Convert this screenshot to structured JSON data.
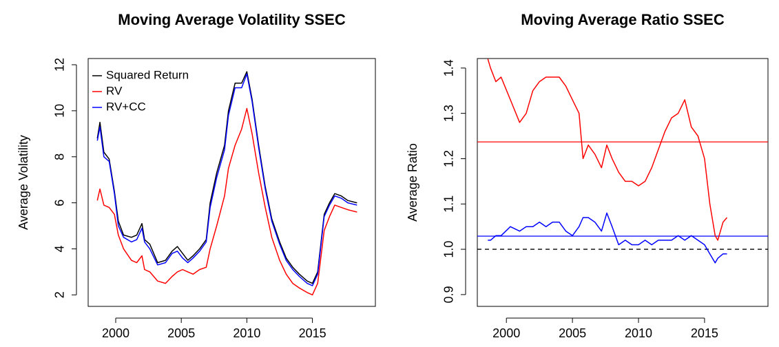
{
  "chart_data": [
    {
      "type": "line",
      "title": "Moving Average Volatility SSEC",
      "ylabel": "Average Volatility",
      "x": [
        1998.6,
        1998.8,
        1999.1,
        1999.5,
        1999.9,
        2000.2,
        2000.6,
        2001.2,
        2001.6,
        2002.0,
        2002.2,
        2002.6,
        2003.2,
        2003.8,
        2004.3,
        2004.7,
        2005.1,
        2005.5,
        2005.9,
        2006.4,
        2006.9,
        2007.2,
        2007.7,
        2008.3,
        2008.6,
        2009.1,
        2009.6,
        2010.0,
        2010.4,
        2010.9,
        2011.4,
        2011.9,
        2012.5,
        2013.0,
        2013.5,
        2014.0,
        2014.6,
        2015.0,
        2015.4,
        2015.9,
        2016.3,
        2016.7,
        2017.2,
        2017.7,
        2018.4
      ],
      "series": [
        {
          "name": "Squared Return",
          "color": "#000000",
          "values": [
            8.8,
            9.5,
            8.2,
            7.9,
            6.5,
            5.2,
            4.6,
            4.5,
            4.6,
            5.1,
            4.4,
            4.2,
            3.4,
            3.5,
            3.9,
            4.1,
            3.8,
            3.5,
            3.7,
            4.0,
            4.4,
            6.0,
            7.3,
            8.5,
            10.0,
            11.2,
            11.2,
            11.7,
            10.5,
            8.5,
            6.7,
            5.3,
            4.3,
            3.6,
            3.2,
            2.9,
            2.6,
            2.5,
            3.0,
            5.5,
            6.0,
            6.4,
            6.3,
            6.1,
            6.0
          ]
        },
        {
          "name": "RV",
          "color": "#ff0000",
          "values": [
            6.1,
            6.6,
            5.9,
            5.8,
            5.5,
            4.6,
            4.0,
            3.5,
            3.4,
            3.7,
            3.1,
            3.0,
            2.6,
            2.5,
            2.8,
            3.0,
            3.1,
            3.0,
            2.9,
            3.1,
            3.2,
            4.0,
            5.0,
            6.3,
            7.5,
            8.5,
            9.2,
            10.1,
            9.0,
            7.3,
            5.8,
            4.5,
            3.5,
            2.9,
            2.5,
            2.3,
            2.1,
            2.0,
            2.5,
            4.8,
            5.4,
            5.9,
            5.8,
            5.7,
            5.6
          ]
        },
        {
          "name": "RV+CC",
          "color": "#0000ff",
          "values": [
            8.7,
            9.3,
            8.0,
            7.8,
            6.4,
            5.0,
            4.5,
            4.3,
            4.4,
            4.9,
            4.3,
            4.0,
            3.3,
            3.4,
            3.8,
            3.9,
            3.6,
            3.4,
            3.6,
            3.9,
            4.3,
            5.8,
            7.1,
            8.3,
            9.8,
            11.0,
            11.0,
            11.6,
            10.4,
            8.4,
            6.6,
            5.2,
            4.2,
            3.5,
            3.1,
            2.8,
            2.5,
            2.4,
            2.9,
            5.4,
            5.9,
            6.3,
            6.2,
            6.0,
            5.9
          ]
        }
      ],
      "xlim": [
        1997.9,
        2019.8
      ],
      "ylim": [
        1.5,
        12.27
      ],
      "xticks": [
        2000,
        2005,
        2010,
        2015
      ],
      "yticks": [
        2,
        4,
        6,
        8,
        10,
        12
      ],
      "legend": "topleft"
    },
    {
      "type": "line",
      "title": "Moving Average Ratio SSEC",
      "ylabel": "Average Ratio",
      "x": [
        1998.6,
        1998.8,
        1999.2,
        1999.6,
        2000.3,
        2001.0,
        2001.5,
        2002.0,
        2002.5,
        2003.0,
        2003.5,
        2004.0,
        2004.5,
        2005.0,
        2005.5,
        2005.8,
        2006.2,
        2006.7,
        2007.2,
        2007.6,
        2008.0,
        2008.5,
        2009.0,
        2009.5,
        2010.0,
        2010.5,
        2011.0,
        2011.5,
        2012.0,
        2012.5,
        2013.0,
        2013.5,
        2014.0,
        2014.5,
        2015.0,
        2015.4,
        2015.8,
        2016.0,
        2016.4,
        2016.7
      ],
      "series": [
        {
          "color": "#ff0000",
          "values": [
            1.42,
            1.4,
            1.37,
            1.38,
            1.33,
            1.28,
            1.3,
            1.35,
            1.37,
            1.38,
            1.38,
            1.38,
            1.36,
            1.33,
            1.3,
            1.2,
            1.23,
            1.21,
            1.18,
            1.23,
            1.2,
            1.17,
            1.15,
            1.15,
            1.14,
            1.15,
            1.18,
            1.22,
            1.26,
            1.29,
            1.3,
            1.33,
            1.27,
            1.25,
            1.2,
            1.1,
            1.03,
            1.02,
            1.06,
            1.07
          ]
        },
        {
          "color": "#0000ff",
          "values": [
            1.02,
            1.02,
            1.03,
            1.03,
            1.05,
            1.04,
            1.05,
            1.05,
            1.06,
            1.05,
            1.06,
            1.06,
            1.04,
            1.03,
            1.05,
            1.07,
            1.07,
            1.06,
            1.04,
            1.08,
            1.05,
            1.01,
            1.02,
            1.01,
            1.01,
            1.02,
            1.01,
            1.02,
            1.02,
            1.02,
            1.03,
            1.02,
            1.03,
            1.02,
            1.01,
            0.99,
            0.97,
            0.98,
            0.99,
            0.99
          ]
        }
      ],
      "hlines": [
        {
          "value": 1.237,
          "color": "#ff0000"
        },
        {
          "value": 1.029,
          "color": "#0000ff"
        },
        {
          "value": 1.0,
          "color": "#000000",
          "dashed": true
        }
      ],
      "xlim": [
        1997.8,
        2019.8
      ],
      "ylim": [
        0.874,
        1.421
      ],
      "xticks": [
        2000,
        2005,
        2010,
        2015
      ],
      "yticks": [
        0.9,
        {
          "value": 1.0,
          "label": "1.0"
        },
        1.1,
        1.2,
        1.3,
        1.4
      ]
    }
  ]
}
